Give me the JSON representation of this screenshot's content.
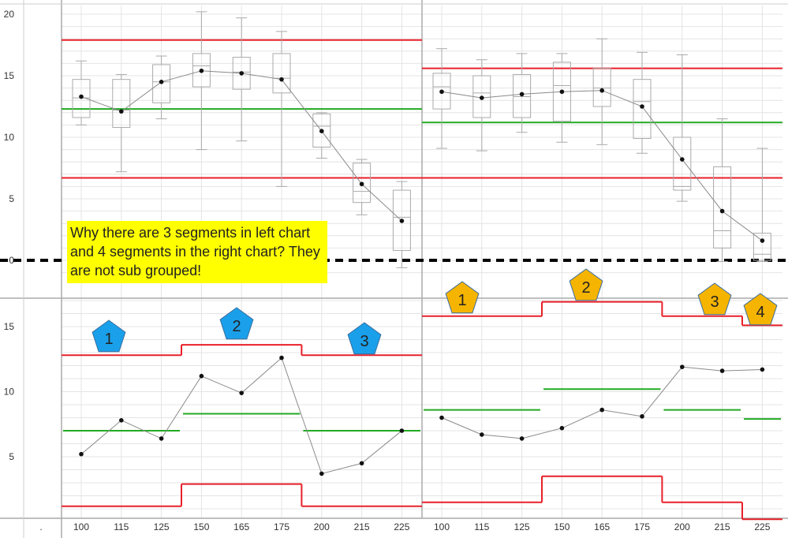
{
  "annotation": "Why there are 3 segments in left chart and 4 segments in the right chart? They are not sub grouped!",
  "colors": {
    "control_limit": "#e8202a",
    "center_line": "#22aa22",
    "data_line": "#8a8a8a",
    "point": "#111111",
    "box": "#aaaaaa",
    "grid": "#e4e4e4",
    "divider": "#aaaaaa",
    "dashed_zero": "#000000",
    "marker_left": "#1aa0ea",
    "marker_right": "#f5b400",
    "marker_stroke": "#3a6ea0"
  },
  "chart_data": [
    {
      "type": "box",
      "panel": "top",
      "categories": [
        "100",
        "115",
        "125",
        "150",
        "165",
        "175",
        "200",
        "215",
        "225"
      ],
      "y_ticks": [
        0,
        5,
        10,
        15,
        20
      ],
      "ylim": [
        -1.4,
        20.7
      ],
      "zero_line": {
        "y": 0,
        "style": "dashed"
      },
      "phases": [
        {
          "name": "left",
          "means": [
            13.3,
            12.1,
            14.5,
            15.4,
            15.2,
            14.7,
            10.5,
            6.2,
            3.2
          ],
          "boxes": [
            {
              "whisker_low": 11.0,
              "q1": 11.6,
              "median": 13.2,
              "q3": 14.7,
              "whisker_high": 16.2
            },
            {
              "whisker_low": 7.2,
              "q1": 10.8,
              "median": 12.2,
              "q3": 14.7,
              "whisker_high": 15.1
            },
            {
              "whisker_low": 11.5,
              "q1": 12.8,
              "median": 14.5,
              "q3": 15.9,
              "whisker_high": 16.6
            },
            {
              "whisker_low": 9.0,
              "q1": 14.1,
              "median": 15.8,
              "q3": 16.8,
              "whisker_high": 20.2
            },
            {
              "whisker_low": 9.7,
              "q1": 13.9,
              "median": 15.3,
              "q3": 16.5,
              "whisker_high": 19.7
            },
            {
              "whisker_low": 6.0,
              "q1": 13.6,
              "median": 14.8,
              "q3": 16.8,
              "whisker_high": 18.6
            },
            {
              "whisker_low": 8.3,
              "q1": 9.2,
              "median": 10.9,
              "q3": 11.9,
              "whisker_high": 12.0
            },
            {
              "whisker_low": 3.7,
              "q1": 4.7,
              "median": 5.6,
              "q3": 7.9,
              "whisker_high": 8.2
            },
            {
              "whisker_low": -0.6,
              "q1": 0.8,
              "median": 3.5,
              "q3": 5.7,
              "whisker_high": 6.4
            }
          ],
          "ucl": 17.9,
          "center": 12.3,
          "lcl": 6.7
        },
        {
          "name": "right",
          "means": [
            13.7,
            13.2,
            13.5,
            13.7,
            13.8,
            12.5,
            8.2,
            4.0,
            1.6
          ],
          "boxes": [
            {
              "whisker_low": 9.1,
              "q1": 12.3,
              "median": 14.1,
              "q3": 15.2,
              "whisker_high": 17.2
            },
            {
              "whisker_low": 8.9,
              "q1": 11.6,
              "median": 13.6,
              "q3": 15.0,
              "whisker_high": 16.3
            },
            {
              "whisker_low": 10.4,
              "q1": 11.6,
              "median": 13.3,
              "q3": 15.1,
              "whisker_high": 16.8
            },
            {
              "whisker_low": 9.6,
              "q1": 11.3,
              "median": 14.2,
              "q3": 16.1,
              "whisker_high": 16.8
            },
            {
              "whisker_low": 9.4,
              "q1": 12.5,
              "median": 14.0,
              "q3": 15.6,
              "whisker_high": 18.0
            },
            {
              "whisker_low": 8.7,
              "q1": 9.9,
              "median": 12.9,
              "q3": 14.7,
              "whisker_high": 16.9
            },
            {
              "whisker_low": 4.8,
              "q1": 5.7,
              "median": 6.0,
              "q3": 10.0,
              "whisker_high": 16.7
            },
            {
              "whisker_low": -0.1,
              "q1": 1.0,
              "median": 2.4,
              "q3": 7.6,
              "whisker_high": 11.5
            },
            {
              "whisker_low": -0.1,
              "q1": 0.0,
              "median": 0.5,
              "q3": 2.2,
              "whisker_high": 9.1
            }
          ],
          "ucl": 15.6,
          "center": 11.2,
          "lcl": 6.7
        }
      ]
    },
    {
      "type": "line",
      "panel": "bottom",
      "categories": [
        "100",
        "115",
        "125",
        "150",
        "165",
        "175",
        "200",
        "215",
        "225"
      ],
      "y_ticks": [
        5,
        10,
        15
      ],
      "ylim": [
        -0.3,
        17.2
      ],
      "phases": [
        {
          "name": "left",
          "values": [
            5.2,
            7.8,
            6.4,
            11.2,
            9.9,
            12.6,
            3.7,
            4.5,
            7.0
          ],
          "segments": [
            {
              "label": "1",
              "start": 0,
              "end": 2,
              "ucl": 12.8,
              "center": 7.0,
              "lcl": 1.2
            },
            {
              "label": "2",
              "start": 3,
              "end": 5,
              "ucl": 13.6,
              "center": 8.3,
              "lcl": 2.9
            },
            {
              "label": "3",
              "start": 6,
              "end": 8,
              "ucl": 12.8,
              "center": 7.0,
              "lcl": 1.2
            }
          ]
        },
        {
          "name": "right",
          "values": [
            8.0,
            6.7,
            6.4,
            7.2,
            8.6,
            8.1,
            11.9,
            11.6,
            11.7
          ],
          "segments": [
            {
              "label": "1",
              "start": 0,
              "end": 2,
              "ucl": 15.8,
              "center": 8.6,
              "lcl": 1.5
            },
            {
              "label": "2",
              "start": 3,
              "end": 5,
              "ucl": 16.9,
              "center": 10.2,
              "lcl": 3.5
            },
            {
              "label": "3",
              "start": 6,
              "end": 7,
              "ucl": 15.8,
              "center": 8.6,
              "lcl": 1.5
            },
            {
              "label": "4",
              "start": 8,
              "end": 8,
              "ucl": 15.1,
              "center": 7.9,
              "lcl": 0.2
            }
          ]
        }
      ]
    }
  ],
  "x_axis_lead_label": "."
}
